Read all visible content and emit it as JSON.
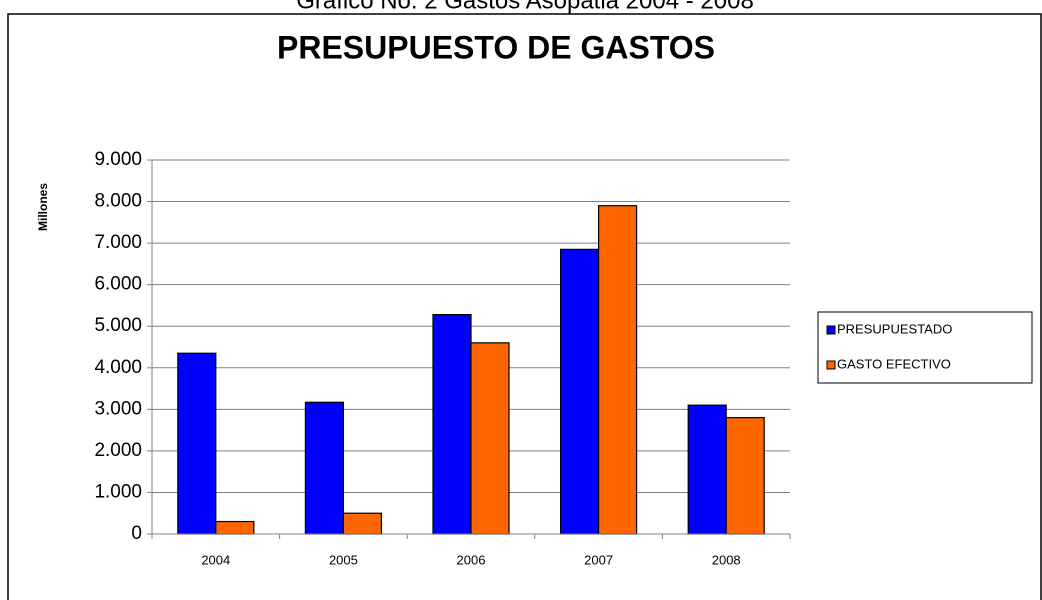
{
  "chart_data": {
    "type": "bar",
    "caption": "Gráfico No. 2 Gastos Asopatia 2004 - 2008",
    "title": "PRESUPUESTO DE GASTOS",
    "y_label": "Millones",
    "categories": [
      "2004",
      "2005",
      "2006",
      "2007",
      "2008"
    ],
    "series": [
      {
        "name": "PRESUPUESTADO",
        "color": "#0000ff",
        "values": [
          4350,
          3170,
          5280,
          6850,
          3100
        ]
      },
      {
        "name": "GASTO EFECTIVO",
        "color": "#ff6600",
        "values": [
          300,
          500,
          4600,
          7900,
          2800
        ]
      }
    ],
    "ylim": [
      0,
      9000
    ],
    "yticks": [
      0,
      {
        "value": 1000,
        "label": "1.000"
      },
      {
        "value": 2000,
        "label": "2.000"
      },
      {
        "value": 3000,
        "label": "3.000"
      },
      {
        "value": 4000,
        "label": "4.000"
      },
      {
        "value": 5000,
        "label": "5.000"
      },
      {
        "value": 6000,
        "label": "6.000"
      },
      {
        "value": 7000,
        "label": "7.000"
      },
      {
        "value": 8000,
        "label": "8.000"
      },
      {
        "value": 9000,
        "label": "9.000"
      }
    ],
    "grid": true,
    "legend": "right"
  }
}
